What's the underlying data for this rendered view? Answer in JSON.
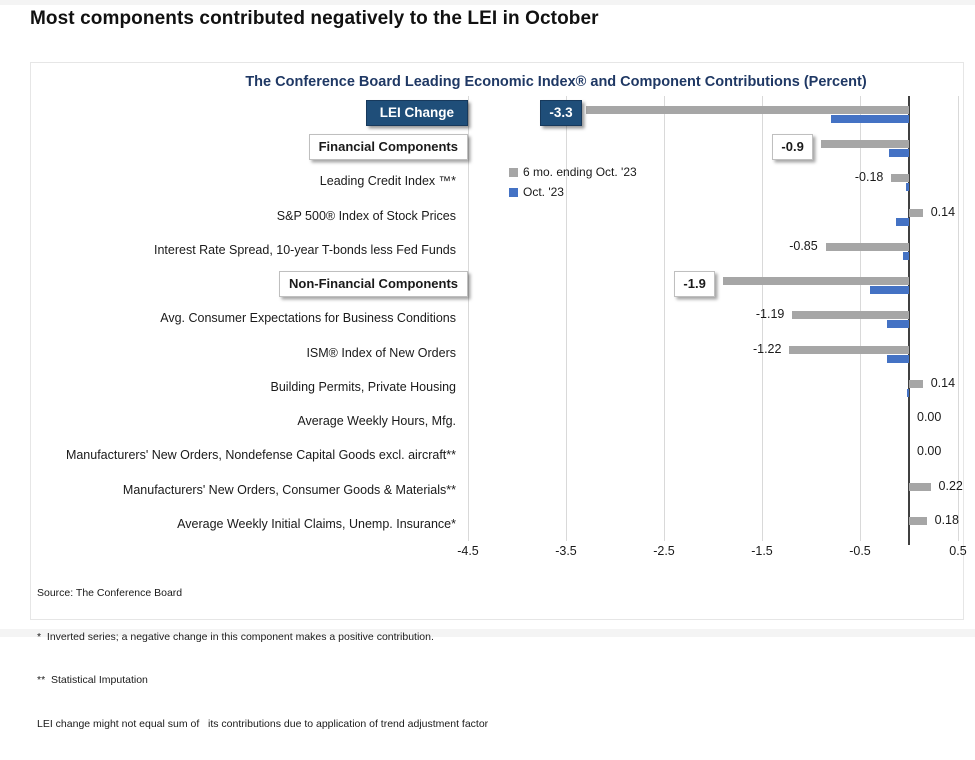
{
  "page": {
    "title": "Most components contributed negatively to the LEI in October"
  },
  "chart": {
    "title": "The Conference Board Leading Economic Index® and Component Contributions (Percent)",
    "legend": [
      {
        "label": "6 mo. ending Oct. '23",
        "color": "#A6A6A6"
      },
      {
        "label": "Oct. '23",
        "color": "#4472C4"
      }
    ]
  },
  "chart_data": {
    "type": "bar",
    "orientation": "horizontal",
    "title": "The Conference Board Leading Economic Index® and Component Contributions (Percent)",
    "categories": [
      "LEI Change",
      "Financial Components",
      "Leading Credit Index ™*",
      "S&P 500® Index of Stock Prices",
      "Interest Rate Spread, 10-year T-bonds less Fed Funds",
      "Non-Financial Components",
      "Avg. Consumer Expectations for Business Conditions",
      "ISM® Index of New Orders",
      "Building Permits, Private Housing",
      "Average Weekly Hours, Mfg.",
      "Manufacturers' New Orders, Nondefense Capital Goods excl. aircraft**",
      "Manufacturers' New Orders, Consumer Goods & Materials**",
      "Average Weekly Initial Claims, Unemp. Insurance*"
    ],
    "category_styles": [
      "navy",
      "box",
      "plain",
      "plain",
      "plain",
      "box",
      "plain",
      "plain",
      "plain",
      "plain",
      "plain",
      "plain",
      "plain"
    ],
    "series": [
      {
        "name": "6 mo. ending Oct. '23",
        "color": "#A6A6A6",
        "values": [
          -3.3,
          -0.9,
          -0.18,
          0.14,
          -0.85,
          -1.9,
          -1.19,
          -1.22,
          0.14,
          0.0,
          0.0,
          0.22,
          0.18
        ]
      },
      {
        "name": "Oct. '23",
        "color": "#4472C4",
        "values": [
          -0.8,
          -0.2,
          -0.03,
          -0.13,
          -0.06,
          -0.4,
          -0.22,
          -0.22,
          -0.02,
          0.0,
          0.0,
          0.0,
          0.0
        ]
      }
    ],
    "data_labels": [
      "-3.3",
      "-0.9",
      "-0.18",
      "0.14",
      "-0.85",
      "-1.9",
      "-1.19",
      "-1.22",
      "0.14",
      "0.00",
      "0.00",
      "0.22",
      "0.18"
    ],
    "data_label_styles": [
      "navy",
      "box",
      "plain",
      "plain",
      "plain",
      "box",
      "plain",
      "plain",
      "plain",
      "plain",
      "plain",
      "plain",
      "plain"
    ],
    "xticks": [
      "-4.5",
      "-3.5",
      "-2.5",
      "-1.5",
      "-0.5",
      "0.5"
    ],
    "xlim": [
      -4.6,
      0.55
    ],
    "grid": true,
    "legend_position": "inside-upper-left-of-plot",
    "axis_color": "#404040",
    "gridline_color": "#D9D9D9",
    "accent_navy": "#1F4E79",
    "title_color": "#1F3864"
  },
  "footer": {
    "lines": [
      "Source: The Conference Board",
      "*  Inverted series; a negative change in this component makes a positive contribution.",
      "**  Statistical Imputation",
      "LEI change might not equal sum of   its contributions due to application of trend adjustment factor"
    ]
  }
}
